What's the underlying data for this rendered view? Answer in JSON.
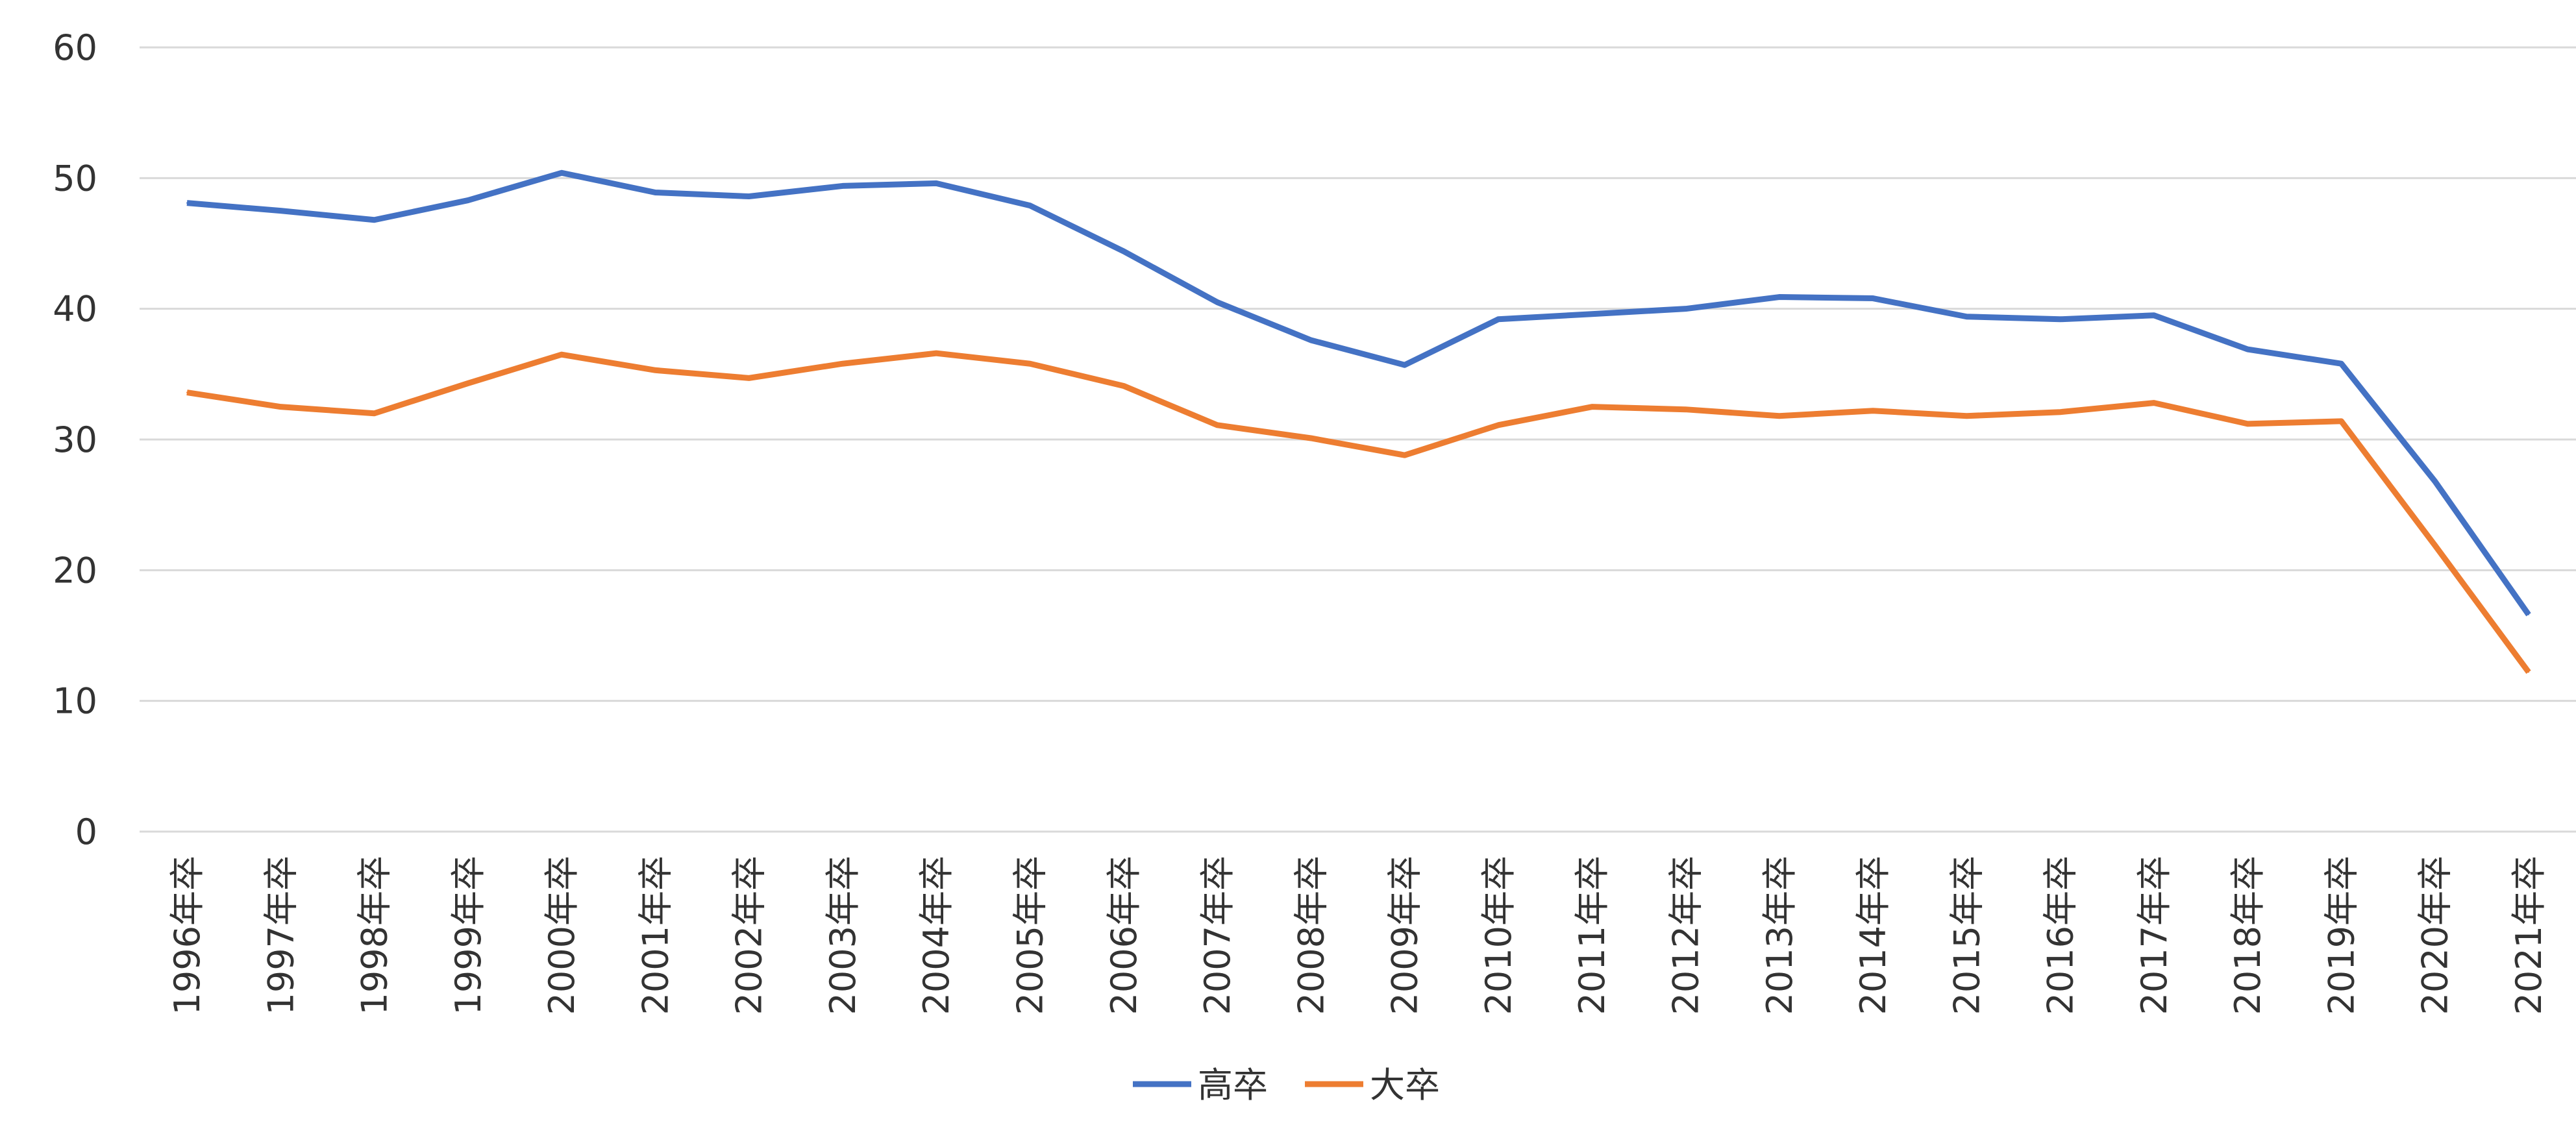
{
  "chart_data": {
    "type": "line",
    "title": "",
    "xlabel": "",
    "ylabel": "",
    "ylim": [
      0,
      60
    ],
    "yticks": [
      "0",
      "10",
      "20",
      "30",
      "40",
      "50",
      "60"
    ],
    "grid": true,
    "legend_position": "bottom",
    "categories": [
      "1996年卒",
      "1997年卒",
      "1998年卒",
      "1999年卒",
      "2000年卒",
      "2001年卒",
      "2002年卒",
      "2003年卒",
      "2004年卒",
      "2005年卒",
      "2006年卒",
      "2007年卒",
      "2008年卒",
      "2009年卒",
      "2010年卒",
      "2011年卒",
      "2012年卒",
      "2013年卒",
      "2014年卒",
      "2015年卒",
      "2016年卒",
      "2017年卒",
      "2018年卒",
      "2019年卒",
      "2020年卒",
      "2021年卒"
    ],
    "series": [
      {
        "name": "高卒",
        "color": "#4472C4",
        "values": [
          48.1,
          47.5,
          46.8,
          48.3,
          50.4,
          48.9,
          48.6,
          49.4,
          49.6,
          47.9,
          44.4,
          40.5,
          37.6,
          35.7,
          39.2,
          39.6,
          40.0,
          40.9,
          40.8,
          39.4,
          39.2,
          39.5,
          36.9,
          35.8,
          26.8,
          16.6
        ]
      },
      {
        "name": "大卒",
        "color": "#ED7D31",
        "values": [
          33.6,
          32.5,
          32.0,
          34.3,
          36.5,
          35.3,
          34.7,
          35.8,
          36.6,
          35.8,
          34.1,
          31.1,
          30.1,
          28.8,
          31.1,
          32.5,
          32.3,
          31.8,
          32.2,
          31.8,
          32.1,
          32.8,
          31.2,
          31.4,
          21.9,
          12.2
        ]
      }
    ]
  }
}
